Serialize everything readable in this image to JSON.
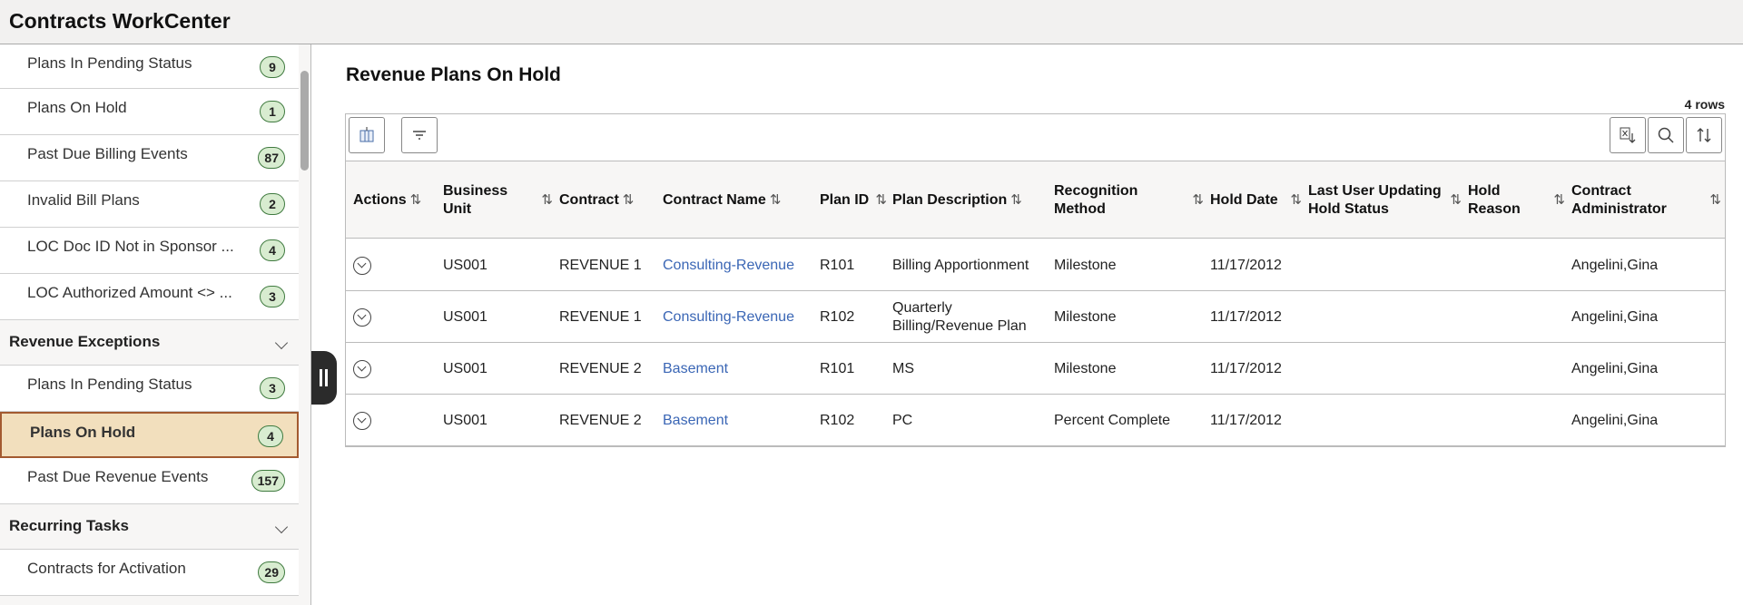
{
  "app": {
    "title": "Contracts WorkCenter"
  },
  "sidebar": [
    {
      "type": "item",
      "label": "Plans In Pending Status",
      "count": "9"
    },
    {
      "type": "item",
      "label": "Plans On Hold",
      "count": "1"
    },
    {
      "type": "item",
      "label": "Past Due Billing Events",
      "count": "87"
    },
    {
      "type": "item",
      "label": "Invalid Bill Plans",
      "count": "2"
    },
    {
      "type": "item",
      "label": "LOC Doc ID Not in Sponsor ...",
      "count": "4"
    },
    {
      "type": "item",
      "label": "LOC Authorized Amount <> ...",
      "count": "3"
    },
    {
      "type": "section",
      "label": "Revenue Exceptions"
    },
    {
      "type": "item",
      "label": "Plans In Pending Status",
      "count": "3"
    },
    {
      "type": "item",
      "label": "Plans On Hold",
      "count": "4",
      "selected": true
    },
    {
      "type": "item",
      "label": "Past Due Revenue Events",
      "count": "157"
    },
    {
      "type": "section",
      "label": "Recurring Tasks"
    },
    {
      "type": "item",
      "label": "Contracts for Activation",
      "count": "29"
    }
  ],
  "main": {
    "title": "Revenue Plans On Hold",
    "row_count": "4 rows",
    "toolbar": {
      "left": [
        "column-chooser-icon",
        "filter-icon"
      ],
      "right": [
        "export-excel-icon",
        "search-icon",
        "sort-icon"
      ]
    },
    "columns": [
      "Actions",
      "Business Unit",
      "Contract",
      "Contract Name",
      "Plan ID",
      "Plan Description",
      "Recognition Method",
      "Hold Date",
      "Last User Updating Hold Status",
      "Hold Reason",
      "Contract Administrator"
    ],
    "rows": [
      [
        "",
        "US001",
        "REVENUE 1",
        "Consulting-Revenue",
        "R101",
        "Billing Apportionment",
        "Milestone",
        "11/17/2012",
        "",
        "",
        "Angelini,Gina"
      ],
      [
        "",
        "US001",
        "REVENUE 1",
        "Consulting-Revenue",
        "R102",
        "Quarterly Billing/Revenue Plan",
        "Milestone",
        "11/17/2012",
        "",
        "",
        "Angelini,Gina"
      ],
      [
        "",
        "US001",
        "REVENUE 2",
        "Basement",
        "R101",
        "MS",
        "Milestone",
        "11/17/2012",
        "",
        "",
        "Angelini,Gina"
      ],
      [
        "",
        "US001",
        "REVENUE 2",
        "Basement",
        "R102",
        "PC",
        "Percent Complete",
        "11/17/2012",
        "",
        "",
        "Angelini,Gina"
      ]
    ]
  },
  "colors": {
    "badge": "#d8ecd0",
    "selected": "#f2dfbd",
    "link": "#3a66b5"
  }
}
